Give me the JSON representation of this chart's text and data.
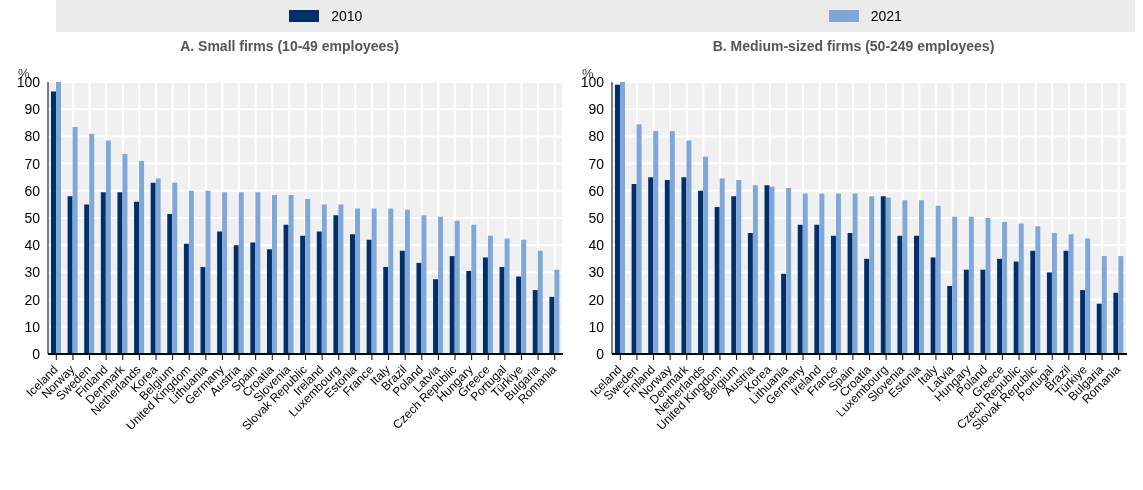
{
  "chart_data": [
    {
      "type": "bar",
      "title": "A. Small firms (10-49 employees)",
      "ylabel": "%",
      "categories": [
        "Iceland",
        "Norway",
        "Sweden",
        "Finland",
        "Denmark",
        "Netherlands",
        "Korea",
        "Belgium",
        "United Kingdom",
        "Lithuania",
        "Germany",
        "Austria",
        "Spain",
        "Croatia",
        "Slovenia",
        "Slovak Republic",
        "Ireland",
        "Luxembourg",
        "Estonia",
        "France",
        "Italy",
        "Brazil",
        "Poland",
        "Latvia",
        "Czech Republic",
        "Hungary",
        "Greece",
        "Portugal",
        "Türkiye",
        "Bulgaria",
        "Romania"
      ],
      "series": [
        {
          "name": "2010",
          "color": "#002f6c",
          "values": [
            96.5,
            58,
            55,
            59.5,
            59.5,
            56,
            63,
            51.5,
            40.5,
            32,
            45,
            40,
            41,
            38.5,
            47.5,
            43.5,
            45,
            51,
            44,
            42,
            32,
            38,
            33.5,
            27.5,
            36,
            30.5,
            35.5,
            32,
            28.5,
            23.5,
            21
          ]
        },
        {
          "name": "2021",
          "color": "#7fa8d9",
          "values": [
            100,
            83.5,
            81,
            78.5,
            73.5,
            71,
            64.5,
            63,
            60,
            60,
            59.5,
            59.5,
            59.5,
            58.5,
            58.5,
            57,
            55,
            55,
            53.5,
            53.5,
            53.5,
            53,
            51,
            50.5,
            49,
            47.5,
            43.5,
            42.5,
            42,
            38,
            31
          ]
        }
      ],
      "ylim": [
        0,
        100
      ],
      "yticks": [
        0,
        10,
        20,
        30,
        40,
        50,
        60,
        70,
        80,
        90,
        100
      ],
      "grid": true,
      "legend": "top"
    },
    {
      "type": "bar",
      "title": "B. Medium-sized firms (50-249 employees)",
      "ylabel": "%",
      "categories": [
        "Iceland",
        "Sweden",
        "Finland",
        "Norway",
        "Denmark",
        "Netherlands",
        "United Kingdom",
        "Belgium",
        "Austria",
        "Korea",
        "Lithuania",
        "Germany",
        "Ireland",
        "France",
        "Spain",
        "Croatia",
        "Luxembourg",
        "Slovenia",
        "Estonia",
        "Italy",
        "Latvia",
        "Hungary",
        "Poland",
        "Greece",
        "Czech Republic",
        "Slovak Republic",
        "Portugal",
        "Brazil",
        "Türkiye",
        "Bulgaria",
        "Romania"
      ],
      "series": [
        {
          "name": "2010",
          "color": "#002f6c",
          "values": [
            99,
            62.5,
            65,
            64,
            65,
            60,
            54,
            58,
            44.5,
            62,
            29.5,
            47.5,
            47.5,
            43.5,
            44.5,
            35,
            58,
            43.5,
            43.5,
            35.5,
            25,
            31,
            31,
            35,
            34,
            38,
            30,
            38,
            23.5,
            18.5,
            22.5
          ]
        },
        {
          "name": "2021",
          "color": "#7fa8d9",
          "values": [
            100,
            84.5,
            82,
            82,
            78.5,
            72.5,
            64.5,
            64,
            62,
            61.5,
            61,
            59,
            59,
            59,
            59,
            58,
            57.5,
            56.5,
            56.5,
            54.5,
            50.5,
            50.5,
            50,
            48.5,
            48,
            47,
            44.5,
            44,
            42.5,
            36,
            36
          ]
        }
      ],
      "ylim": [
        0,
        100
      ],
      "yticks": [
        0,
        10,
        20,
        30,
        40,
        50,
        60,
        70,
        80,
        90,
        100
      ],
      "grid": true,
      "legend": "top"
    }
  ]
}
